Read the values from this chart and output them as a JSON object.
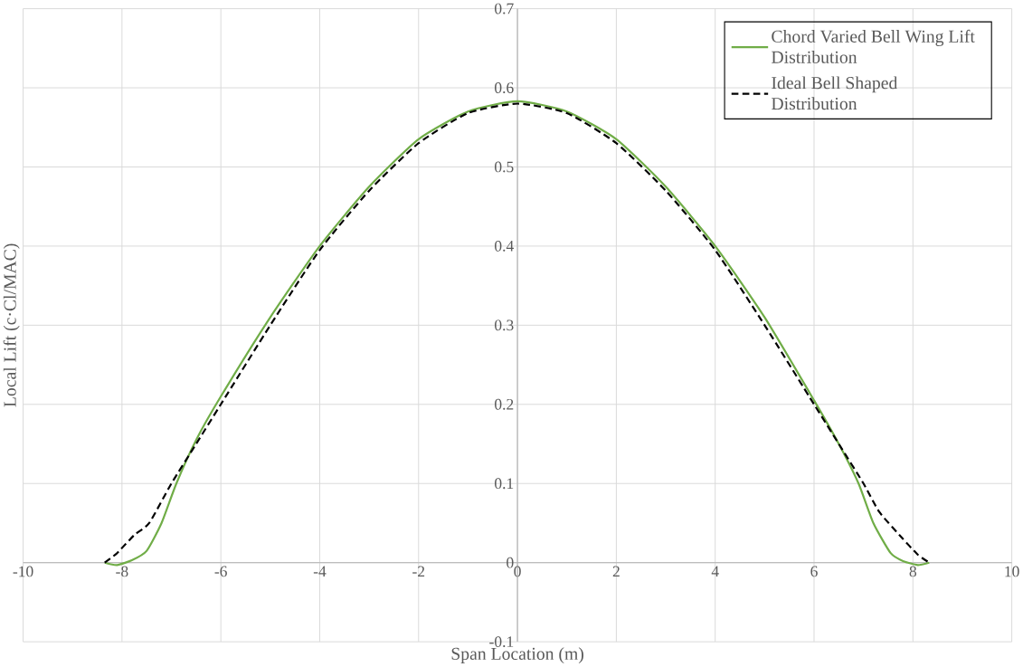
{
  "chart_data": {
    "type": "line",
    "xlabel": "Span Location (m)",
    "ylabel": "Local Lift (c·Cl/MAC)",
    "xlim": [
      -10,
      10
    ],
    "ylim": [
      -0.1,
      0.7
    ],
    "xticks": [
      -10,
      -8,
      -6,
      -4,
      -2,
      0,
      2,
      4,
      6,
      8,
      10
    ],
    "yticks": [
      -0.1,
      0,
      0.1,
      0.2,
      0.3,
      0.4,
      0.5,
      0.6,
      0.7
    ],
    "grid": true,
    "legend": "top right",
    "series": [
      {
        "name": "Chord Varied Bell Wing Lift Distribution",
        "color": "#70ad47",
        "line_style": "solid",
        "x": [
          -8.35,
          -8.1,
          -7.8,
          -7.5,
          -7.2,
          -6.9,
          -6.5,
          -6,
          -5,
          -4,
          -3,
          -2,
          -1,
          0,
          1,
          2,
          3,
          4,
          5,
          6,
          6.5,
          6.9,
          7.2,
          7.55,
          7.8,
          8.1,
          8.33
        ],
        "values": [
          0,
          -0.003,
          0.003,
          0.015,
          0.05,
          0.1,
          0.155,
          0.21,
          0.31,
          0.4,
          0.475,
          0.535,
          0.57,
          0.583,
          0.57,
          0.535,
          0.475,
          0.4,
          0.31,
          0.205,
          0.15,
          0.1,
          0.05,
          0.012,
          0.002,
          -0.003,
          0
        ]
      },
      {
        "name": "Ideal Bell Shaped Distribution",
        "color": "#000000",
        "line_style": "dashed",
        "x": [
          -8.35,
          -8.1,
          -7.75,
          -7.45,
          -7,
          -6.5,
          -6,
          -5,
          -4,
          -3,
          -2,
          -1,
          0,
          1,
          2,
          3,
          4,
          5,
          6,
          6.5,
          7,
          7.32,
          7.77,
          8.1,
          8.33
        ],
        "values": [
          0,
          0.012,
          0.035,
          0.05,
          0.1,
          0.15,
          0.2,
          0.3,
          0.395,
          0.47,
          0.53,
          0.568,
          0.58,
          0.568,
          0.53,
          0.47,
          0.395,
          0.3,
          0.2,
          0.15,
          0.1,
          0.064,
          0.032,
          0.01,
          0
        ]
      }
    ]
  }
}
